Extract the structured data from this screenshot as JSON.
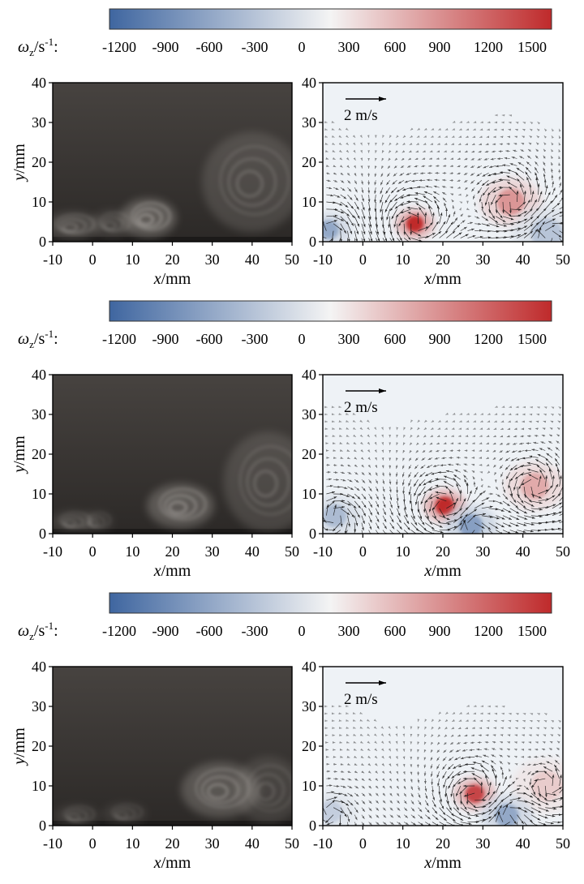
{
  "colorbar": {
    "label_symbol": "ω",
    "label_sub": "z",
    "label_unit": "/s",
    "label_sup": "-1",
    "label_colon": ":",
    "ticks": [
      "-1200",
      "-900",
      "-600",
      "-300",
      "0",
      "300",
      "600",
      "900",
      "1200",
      "1500"
    ],
    "range": [
      -1500,
      1500
    ],
    "colors": {
      "negative": "#3f66a0",
      "zero": "#f4f4f4",
      "positive": "#bf2a2b"
    }
  },
  "reference_arrow_label": "2 m/s",
  "chart_data": [
    {
      "type": "image",
      "panel": "row1-flow-visualization",
      "xlabel_var": "x",
      "xlabel_unit": "/mm",
      "ylabel_var": "y",
      "ylabel_unit": "/mm",
      "xlim": [
        -10,
        50
      ],
      "ylim": [
        0,
        40
      ],
      "xticks": [
        "-10",
        "0",
        "10",
        "20",
        "30",
        "40",
        "50"
      ],
      "yticks": [
        "0",
        "10",
        "20",
        "30",
        "40"
      ],
      "bright_features": [
        {
          "x": -5,
          "y": 4,
          "rx": 5,
          "ry": 2.5,
          "intensity": 0.55
        },
        {
          "x": 5,
          "y": 4.5,
          "rx": 4,
          "ry": 2.5,
          "intensity": 0.4
        },
        {
          "x": 14,
          "y": 6,
          "rx": 5,
          "ry": 3.5,
          "intensity": 0.9
        },
        {
          "x": 40,
          "y": 15,
          "rx": 9,
          "ry": 9,
          "intensity": 0.5
        }
      ]
    },
    {
      "type": "vector_field",
      "panel": "row1-vorticity",
      "xlabel_var": "x",
      "xlabel_unit": "/mm",
      "xlim": [
        -10,
        50
      ],
      "ylim": [
        0,
        40
      ],
      "xticks": [
        "-10",
        "0",
        "10",
        "20",
        "30",
        "40",
        "50"
      ],
      "yticks": [
        "0",
        "10",
        "20",
        "30",
        "40"
      ],
      "vortices": [
        {
          "x": 13,
          "y": 4.5,
          "omega": 1500,
          "radius": 2.2,
          "strength": 1.4
        },
        {
          "x": 37,
          "y": 10,
          "omega": 700,
          "radius": 3.5,
          "strength": 1.2
        },
        {
          "x": -8.5,
          "y": 3,
          "omega": -800,
          "radius": 2.5,
          "strength": -0.8
        },
        {
          "x": 46,
          "y": 2,
          "omega": -500,
          "radius": 4,
          "strength": -0.4
        }
      ]
    },
    {
      "type": "image",
      "panel": "row2-flow-visualization",
      "xlabel_var": "x",
      "xlabel_unit": "/mm",
      "ylabel_var": "y",
      "ylabel_unit": "/mm",
      "xlim": [
        -10,
        50
      ],
      "ylim": [
        0,
        40
      ],
      "xticks": [
        "-10",
        "0",
        "10",
        "20",
        "30",
        "40",
        "50"
      ],
      "yticks": [
        "0",
        "10",
        "20",
        "30",
        "40"
      ],
      "bright_features": [
        {
          "x": -5,
          "y": 3,
          "rx": 4,
          "ry": 2,
          "intensity": 0.4
        },
        {
          "x": 1,
          "y": 3,
          "rx": 3,
          "ry": 2,
          "intensity": 0.3
        },
        {
          "x": 22,
          "y": 7,
          "rx": 6,
          "ry": 4,
          "intensity": 0.85
        },
        {
          "x": 44,
          "y": 13,
          "rx": 8,
          "ry": 9,
          "intensity": 0.5
        }
      ]
    },
    {
      "type": "vector_field",
      "panel": "row2-vorticity",
      "xlabel_var": "x",
      "xlabel_unit": "/mm",
      "xlim": [
        -10,
        50
      ],
      "ylim": [
        0,
        40
      ],
      "xticks": [
        "-10",
        "0",
        "10",
        "20",
        "30",
        "40",
        "50"
      ],
      "yticks": [
        "0",
        "10",
        "20",
        "30",
        "40"
      ],
      "vortices": [
        {
          "x": 20.5,
          "y": 7,
          "omega": 1500,
          "radius": 2.4,
          "strength": 1.4
        },
        {
          "x": 43,
          "y": 12,
          "omega": 550,
          "radius": 3.5,
          "strength": 1.0
        },
        {
          "x": -7,
          "y": 4.5,
          "omega": -600,
          "radius": 3,
          "strength": -0.6
        },
        {
          "x": 27,
          "y": 2,
          "omega": -900,
          "radius": 3,
          "strength": -0.6
        }
      ]
    },
    {
      "type": "image",
      "panel": "row3-flow-visualization",
      "xlabel_var": "x",
      "xlabel_unit": "/mm",
      "ylabel_var": "y",
      "ylabel_unit": "/mm",
      "xlim": [
        -10,
        50
      ],
      "ylim": [
        0,
        40
      ],
      "xticks": [
        "-10",
        "0",
        "10",
        "20",
        "30",
        "40",
        "50"
      ],
      "yticks": [
        "0",
        "10",
        "20",
        "30",
        "40"
      ],
      "bright_features": [
        {
          "x": -4,
          "y": 2.5,
          "rx": 4,
          "ry": 2,
          "intensity": 0.35
        },
        {
          "x": 8,
          "y": 3,
          "rx": 4,
          "ry": 2,
          "intensity": 0.3
        },
        {
          "x": 32,
          "y": 9,
          "rx": 7,
          "ry": 5,
          "intensity": 0.75
        },
        {
          "x": 44,
          "y": 9,
          "rx": 6,
          "ry": 6,
          "intensity": 0.4
        }
      ]
    },
    {
      "type": "vector_field",
      "panel": "row3-vorticity",
      "xlabel_var": "x",
      "xlabel_unit": "/mm",
      "xlim": [
        -10,
        50
      ],
      "ylim": [
        0,
        40
      ],
      "xticks": [
        "-10",
        "0",
        "10",
        "20",
        "30",
        "40",
        "50"
      ],
      "yticks": [
        "0",
        "10",
        "20",
        "30",
        "40"
      ],
      "vortices": [
        {
          "x": 28,
          "y": 8,
          "omega": 1300,
          "radius": 2.4,
          "strength": 1.3
        },
        {
          "x": 46,
          "y": 10,
          "omega": 300,
          "radius": 4,
          "strength": 0.6
        },
        {
          "x": -8,
          "y": 3.5,
          "omega": -400,
          "radius": 3,
          "strength": -0.4
        },
        {
          "x": 36,
          "y": 2.5,
          "omega": -800,
          "radius": 3,
          "strength": -0.6
        }
      ]
    }
  ]
}
